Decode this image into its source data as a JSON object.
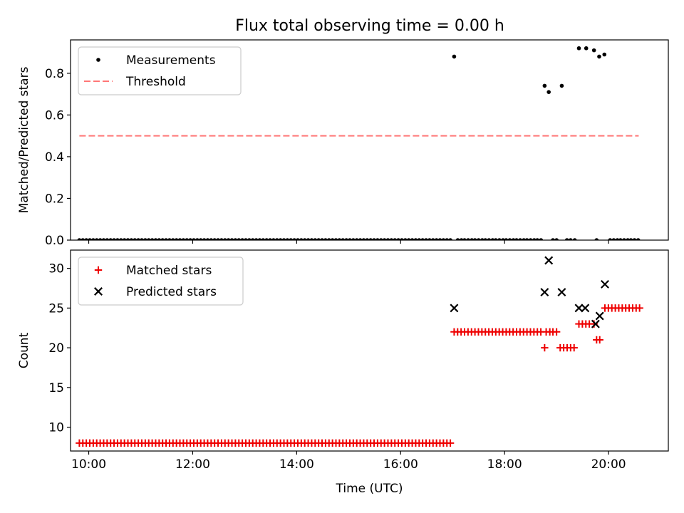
{
  "title": "Flux total observing time = 0.00 h",
  "chart_data": [
    {
      "type": "scatter",
      "panel": "top",
      "ylabel": "Matched/Predicted stars",
      "xlim": [
        9.65,
        21.15
      ],
      "ylim": [
        0.0,
        0.96
      ],
      "yticks": [
        0.0,
        0.2,
        0.4,
        0.6,
        0.8
      ],
      "ytick_labels": [
        "0.0",
        "0.2",
        "0.4",
        "0.6",
        "0.8"
      ],
      "legend_position": "upper-left",
      "series": [
        {
          "name": "Measurements",
          "marker": "dot",
          "color": "#000000",
          "zero_run": {
            "start": 9.82,
            "end": 16.93,
            "step": 0.0667,
            "value": 0.0
          },
          "points": [
            [
              17.03,
              0.88
            ],
            [
              17.1,
              0.0
            ],
            [
              17.17,
              0.0
            ],
            [
              17.23,
              0.0
            ],
            [
              17.3,
              0.0
            ],
            [
              17.37,
              0.0
            ],
            [
              17.43,
              0.0
            ],
            [
              17.5,
              0.0
            ],
            [
              17.57,
              0.0
            ],
            [
              17.63,
              0.0
            ],
            [
              17.7,
              0.0
            ],
            [
              17.77,
              0.0
            ],
            [
              17.83,
              0.0
            ],
            [
              17.9,
              0.0
            ],
            [
              17.97,
              0.0
            ],
            [
              18.03,
              0.0
            ],
            [
              18.1,
              0.0
            ],
            [
              18.17,
              0.0
            ],
            [
              18.23,
              0.0
            ],
            [
              18.3,
              0.0
            ],
            [
              18.37,
              0.0
            ],
            [
              18.43,
              0.0
            ],
            [
              18.5,
              0.0
            ],
            [
              18.57,
              0.0
            ],
            [
              18.63,
              0.0
            ],
            [
              18.7,
              0.0
            ],
            [
              18.77,
              0.74
            ],
            [
              18.85,
              0.71
            ],
            [
              18.93,
              0.0
            ],
            [
              19.0,
              0.0
            ],
            [
              19.1,
              0.74
            ],
            [
              19.2,
              0.0
            ],
            [
              19.27,
              0.0
            ],
            [
              19.35,
              0.0
            ],
            [
              19.43,
              0.92
            ],
            [
              19.57,
              0.92
            ],
            [
              19.72,
              0.91
            ],
            [
              19.82,
              0.88
            ],
            [
              19.92,
              0.89
            ],
            [
              19.77,
              0.0
            ],
            [
              20.03,
              0.0
            ],
            [
              20.1,
              0.0
            ],
            [
              20.17,
              0.0
            ],
            [
              20.23,
              0.0
            ],
            [
              20.3,
              0.0
            ],
            [
              20.37,
              0.0
            ],
            [
              20.43,
              0.0
            ],
            [
              20.5,
              0.0
            ],
            [
              20.57,
              0.0
            ]
          ]
        },
        {
          "name": "Threshold",
          "style": "dashed-line",
          "color": "#ff7777",
          "x": [
            9.82,
            20.58
          ],
          "y": [
            0.5,
            0.5
          ]
        }
      ]
    },
    {
      "type": "scatter",
      "panel": "bottom",
      "xlabel": "Time (UTC)",
      "ylabel": "Count",
      "xlim": [
        9.65,
        21.15
      ],
      "ylim": [
        7.0,
        32.3
      ],
      "yticks": [
        10,
        15,
        20,
        25,
        30
      ],
      "ytick_labels": [
        "10",
        "15",
        "20",
        "25",
        "30"
      ],
      "xticks": [
        10,
        12,
        14,
        16,
        18,
        20
      ],
      "xtick_labels": [
        "10:00",
        "12:00",
        "14:00",
        "16:00",
        "18:00",
        "20:00"
      ],
      "legend_position": "upper-left",
      "series": [
        {
          "name": "Matched stars",
          "marker": "plus",
          "color": "#ee0000",
          "runs": [
            {
              "start": 9.82,
              "end": 16.93,
              "step": 0.0667,
              "value": 8
            },
            {
              "start": 17.03,
              "end": 18.7,
              "step": 0.0667,
              "value": 22
            },
            {
              "start": 19.43,
              "end": 19.63,
              "step": 0.0667,
              "value": 23
            },
            {
              "start": 19.07,
              "end": 19.33,
              "step": 0.0667,
              "value": 20
            },
            {
              "start": 19.93,
              "end": 20.57,
              "step": 0.0667,
              "value": 25
            }
          ],
          "points": [
            [
              18.77,
              20
            ],
            [
              18.8,
              22
            ],
            [
              18.87,
              22
            ],
            [
              18.93,
              22
            ],
            [
              19.0,
              22
            ],
            [
              19.72,
              23
            ],
            [
              19.77,
              21
            ],
            [
              19.83,
              21
            ]
          ]
        },
        {
          "name": "Predicted stars",
          "marker": "x",
          "color": "#000000",
          "points": [
            [
              17.03,
              25
            ],
            [
              18.77,
              27
            ],
            [
              18.85,
              31
            ],
            [
              19.1,
              27
            ],
            [
              19.43,
              25
            ],
            [
              19.55,
              25
            ],
            [
              19.75,
              23
            ],
            [
              19.83,
              24
            ],
            [
              19.93,
              28
            ]
          ]
        }
      ]
    }
  ]
}
